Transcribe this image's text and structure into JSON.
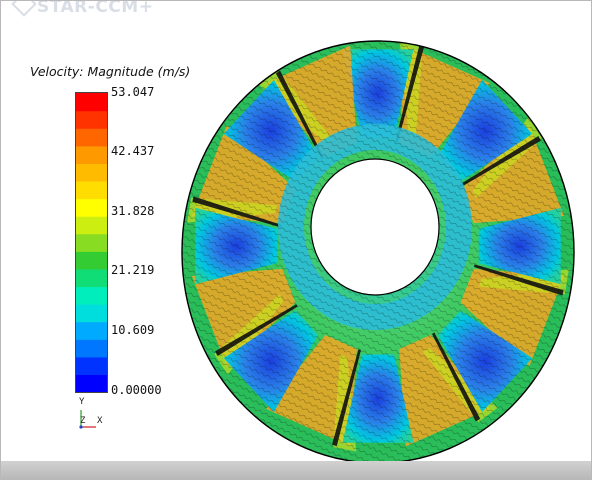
{
  "brand": {
    "text": "STAR-CCM+"
  },
  "legend": {
    "title": "Velocity: Magnitude (m/s)",
    "ticks": [
      "53.047",
      "42.437",
      "31.828",
      "21.219",
      "10.609",
      "0.00000"
    ],
    "colors": [
      "#0000ff",
      "#0033ff",
      "#0077ff",
      "#00aaff",
      "#00dddd",
      "#00eebb",
      "#11dd77",
      "#33cc33",
      "#88dd22",
      "#ccee11",
      "#ffff00",
      "#ffdd00",
      "#ffbb00",
      "#ff9900",
      "#ff6600",
      "#ff3300",
      "#ff0000"
    ]
  },
  "triad": {
    "y": "Y",
    "z": "Z",
    "x": "X"
  },
  "scene": {
    "blade_count": 8,
    "colors": {
      "background": "#22bb55",
      "blade_low": "#1a3fdd",
      "blade_edge": "#00c8e0",
      "high": "#f5a623",
      "mid": "#c8e020",
      "hub_ring": "#2bbcd8",
      "wake": "#111111"
    }
  }
}
